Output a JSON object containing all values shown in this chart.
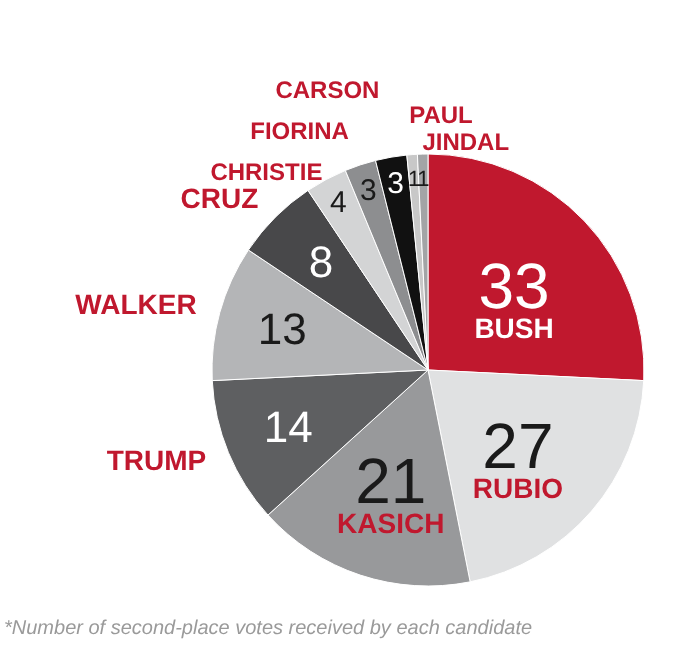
{
  "chart_data": {
    "type": "pie",
    "categories": [
      "BUSH",
      "RUBIO",
      "KASICH",
      "TRUMP",
      "WALKER",
      "CRUZ",
      "CHRISTIE",
      "FIORINA",
      "CARSON",
      "PAUL",
      "JINDAL"
    ],
    "values": [
      33,
      27,
      21,
      14,
      13,
      8,
      4,
      3,
      3,
      1,
      1
    ],
    "colors": [
      "#c0182e",
      "#e0e1e2",
      "#98999b",
      "#5e5f61",
      "#b4b5b7",
      "#48484a",
      "#d3d4d5",
      "#8d8e90",
      "#111111",
      "#c8c8c8",
      "#a3a4a6"
    ],
    "data_labels": true,
    "annotations": [
      "*Number of second-place votes received by each candidate"
    ]
  }
}
